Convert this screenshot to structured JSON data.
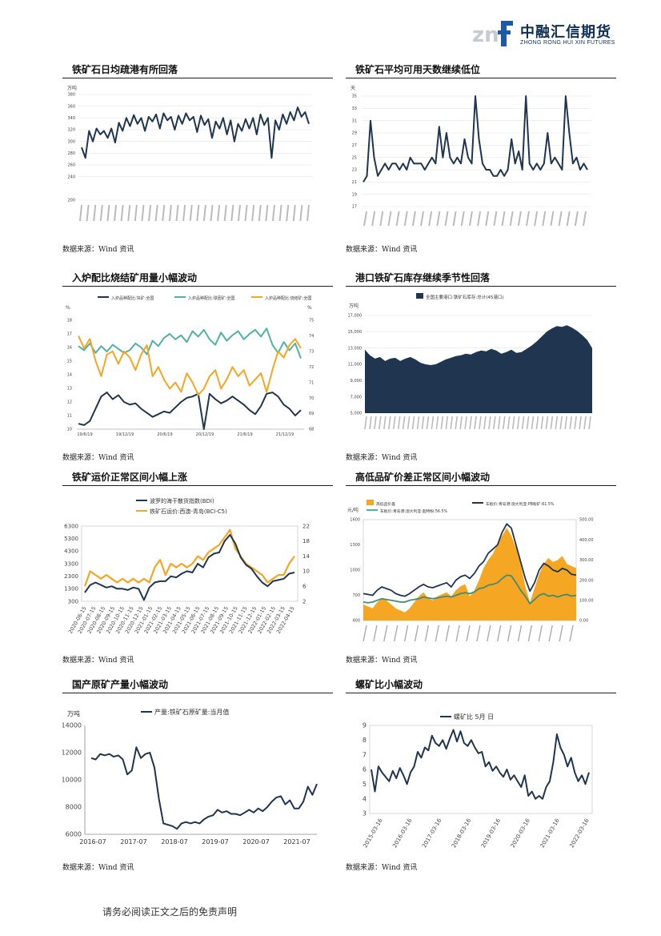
{
  "header": {
    "logo_cn": "中融汇信期货",
    "logo_en": "ZHONG RONG HUI XIN FUTURES",
    "logo_mark": "znf"
  },
  "colors": {
    "navy": "#1f3550",
    "orange": "#f5a623",
    "teal": "#4fb3a4",
    "brand": "#0f2f55"
  },
  "panels": [
    {
      "title": "铁矿石日均疏港有所回落",
      "source": "数据来源：Wind 资讯",
      "chart_data": {
        "type": "line",
        "ylabel": "万吨",
        "yticks": [
          "200",
          "240",
          "260",
          "280",
          "300",
          "320",
          "340",
          "360",
          "380"
        ],
        "ylim": [
          200,
          380
        ],
        "series": [
          {
            "values": [
              290,
              272,
              318,
              300,
              322,
              312,
              318,
              306,
              322,
              298,
              332,
              318,
              340,
              326,
              345,
              330,
              340,
              318,
              342,
              334,
              346,
              322,
              348,
              336,
              342,
              320,
              344,
              330,
              348,
              336,
              342,
              316,
              344,
              328,
              338,
              306,
              334,
              322,
              340,
              312,
              336,
              300,
              330,
              318,
              338,
              322,
              340,
              312,
              346,
              328,
              340,
              272,
              336,
              320,
              346,
              330,
              350,
              336,
              358,
              342,
              350,
              330
            ]
          }
        ]
      }
    },
    {
      "title": "铁矿石平均可用天数继续低位",
      "source": "数据来源：Wind 资讯",
      "chart_data": {
        "type": "line",
        "ylabel": "天",
        "yticks": [
          "17",
          "19",
          "21",
          "23",
          "25",
          "27",
          "29",
          "31",
          "33",
          "35"
        ],
        "ylim": [
          17,
          35
        ],
        "series": [
          {
            "values": [
              21,
              22,
              31,
              25,
              22,
              23,
              24,
              23,
              24,
              24,
              23,
              24,
              23,
              25,
              24,
              24,
              24,
              23,
              24,
              25,
              24,
              30,
              25,
              29,
              25,
              24,
              25,
              24,
              28,
              25,
              24,
              35,
              28,
              24,
              23,
              23,
              22,
              22,
              23,
              22,
              23,
              28,
              24,
              26,
              23,
              35,
              24,
              23,
              24,
              23,
              24,
              29,
              24,
              25,
              24,
              23,
              35,
              29,
              24,
              25,
              23,
              24,
              23
            ]
          }
        ]
      }
    },
    {
      "title": "入炉配比烧结矿用量小幅波动",
      "source": "数据来源：Wind 资讯",
      "chart_data": {
        "type": "line",
        "ylabel_left": "%",
        "ylabel_right": "%",
        "legend": [
          "入炉品种配比:块矿:全国",
          "入炉品种配比:球团矿:全国",
          "入炉品种配比:烧结矿:全国"
        ],
        "yticks_left": [
          "10",
          "11",
          "12",
          "13",
          "14",
          "15",
          "16",
          "17",
          "18"
        ],
        "yticks_right": [
          "68",
          "69",
          "70",
          "71",
          "72",
          "73",
          "74",
          "75"
        ],
        "xticks": [
          "19/6/19",
          "19/12/19",
          "20/6/19",
          "20/12/19",
          "21/6/19",
          "21/12/19"
        ],
        "series": [
          {
            "name": "入炉品种配比:块矿:全国",
            "axis": "left",
            "values": [
              10.4,
              10.3,
              10.6,
              11.5,
              12.4,
              12.7,
              12.2,
              12.5,
              12.0,
              11.8,
              11.9,
              11.5,
              11.2,
              10.9,
              11.1,
              11.3,
              11.2,
              11.6,
              12.0,
              12.3,
              12.4,
              12.6,
              10.0,
              12.6,
              12.2,
              11.9,
              12.1,
              12.4,
              12.1,
              11.8,
              11.4,
              11.1,
              11.7,
              12.6,
              12.7,
              12.4,
              11.8,
              11.5,
              11.0,
              11.4
            ]
          },
          {
            "name": "入炉品种配比:球团矿:全国",
            "axis": "left",
            "values": [
              16.1,
              15.8,
              16.3,
              15.6,
              16.1,
              15.7,
              16.2,
              15.9,
              15.6,
              15.8,
              16.3,
              16.0,
              15.5,
              16.5,
              16.1,
              16.7,
              17.0,
              16.6,
              16.9,
              16.4,
              17.2,
              16.8,
              17.3,
              16.6,
              16.2,
              17.1,
              16.5,
              16.9,
              17.2,
              16.6,
              17.0,
              17.3,
              16.8,
              17.4,
              16.2,
              15.6,
              16.4,
              15.8,
              16.3,
              15.2
            ]
          },
          {
            "name": "入炉品种配比:烧结矿:全国",
            "axis": "right",
            "values": [
              74.0,
              73.2,
              73.8,
              72.4,
              71.4,
              72.8,
              73.0,
              72.2,
              73.0,
              72.6,
              71.8,
              72.8,
              73.4,
              71.4,
              72.0,
              71.2,
              70.6,
              71.0,
              70.4,
              71.6,
              71.0,
              70.2,
              70.6,
              71.4,
              71.8,
              70.6,
              71.2,
              72.0,
              71.4,
              71.8,
              70.8,
              71.2,
              71.6,
              70.4,
              71.8,
              73.0,
              72.6,
              73.4,
              73.8,
              73.2
            ]
          }
        ]
      }
    },
    {
      "title": "港口铁矿石库存继续季节性回落",
      "source": "数据来源：Wind 资讯",
      "chart_data": {
        "type": "area",
        "ylabel": "万吨",
        "legend": [
          "全国主要港口:铁矿石库存:总计(45港口)"
        ],
        "yticks": [
          "5,000",
          "7,000",
          "9,000",
          "11,000",
          "13,000",
          "15,000",
          "17,000"
        ],
        "ylim": [
          5000,
          17000
        ],
        "series": [
          {
            "name": "全国主要港口:铁矿石库存:总计(45港口)",
            "values": [
              12800,
              12100,
              11700,
              11900,
              11400,
              11700,
              11800,
              11400,
              11700,
              11900,
              11600,
              11200,
              11000,
              10900,
              11000,
              11300,
              11600,
              11800,
              12000,
              12100,
              12300,
              12200,
              12500,
              12700,
              12600,
              12900,
              12700,
              12300,
              12500,
              12800,
              12400,
              12500,
              12900,
              13300,
              13800,
              14400,
              15000,
              15400,
              15700,
              15600,
              15800,
              15500,
              15100,
              14600,
              14000,
              13000
            ]
          }
        ]
      }
    },
    {
      "title": "铁矿运价正常区间小幅上涨",
      "source": "数据来源：Wind 资讯",
      "chart_data": {
        "type": "line",
        "legend": [
          "波罗的海干散货指数(BDI)",
          "铁矿石运价:西澳-青岛(BCI-C5)"
        ],
        "yticks_left": [
          "300",
          "1300",
          "2300",
          "3300",
          "4300",
          "5300",
          "6300"
        ],
        "yticks_right": [
          "2",
          "6",
          "10",
          "14",
          "18",
          "22"
        ],
        "xticks": [
          "2020-06-15",
          "2020-07-15",
          "2020-08-15",
          "2020-09-15",
          "2020-10-15",
          "2020-11-15",
          "2020-12-15",
          "2021-01-15",
          "2021-02-15",
          "2021-03-15",
          "2021-04-15",
          "2021-05-15",
          "2021-06-15",
          "2021-07-15",
          "2021-08-15",
          "2021-09-15",
          "2021-10-15",
          "2021-11-15",
          "2021-12-15",
          "2022-01-15",
          "2022-02-15",
          "2022-03-15",
          "2022-04-15"
        ],
        "series": [
          {
            "name": "波罗的海干散货指数(BDI)",
            "axis": "left",
            "values": [
              1000,
              1600,
              1800,
              1600,
              1400,
              1500,
              1300,
              1300,
              1200,
              1400,
              1300,
              400,
              1400,
              1800,
              1900,
              1900,
              2300,
              2200,
              2500,
              2700,
              2600,
              3300,
              3000,
              3800,
              4100,
              4200,
              5100,
              5600,
              4900,
              3800,
              3200,
              2900,
              2300,
              1800,
              1500,
              1900,
              2000,
              2100,
              2500,
              2600
            ]
          },
          {
            "name": "铁矿石运价:西澳-青岛(BCI-C5)",
            "axis": "right",
            "values": [
              6,
              10,
              9,
              8,
              9,
              8,
              7,
              8,
              7,
              8,
              7,
              8,
              7,
              11,
              13,
              9,
              12,
              11,
              12,
              11,
              12,
              14,
              13,
              15,
              16,
              17,
              19,
              21,
              16,
              14,
              12,
              11,
              10,
              9,
              7,
              8,
              9,
              9,
              12,
              14
            ]
          }
        ]
      }
    },
    {
      "title": "高低品矿价差正常区间小幅波动",
      "source": "数据来源：Wind 资讯",
      "chart_data": {
        "type": "area",
        "ylabel_left": "元/吨",
        "legend": [
          "高低品价差",
          "车板价:青岛港:澳大利亚:PB粉矿:61.5%",
          "车板价:青岛港:澳大利亚:超特粉:56.5%"
        ],
        "yticks_left": [
          "400",
          "700",
          "1000",
          "1300",
          "1600"
        ],
        "yticks_right": [
          "0.00",
          "100.00",
          "200.00",
          "300.00",
          "400.00",
          "500.00"
        ],
        "series": [
          {
            "name": "高低品价差",
            "axis": "right",
            "values": [
              80,
              70,
              60,
              90,
              110,
              100,
              80,
              60,
              50,
              40,
              60,
              90,
              120,
              140,
              110,
              100,
              120,
              130,
              140,
              120,
              150,
              170,
              180,
              120,
              150,
              200,
              260,
              300,
              330,
              380,
              420,
              460,
              420,
              360,
              280,
              170,
              90,
              160,
              230,
              280,
              310,
              290,
              300,
              320,
              280,
              270,
              260
            ]
          },
          {
            "name": "车板价:青岛港:澳大利亚:PB粉矿:61.5%",
            "axis": "left",
            "values": [
              720,
              710,
              700,
              760,
              800,
              780,
              760,
              720,
              700,
              690,
              720,
              760,
              800,
              830,
              800,
              790,
              810,
              830,
              850,
              800,
              880,
              920,
              940,
              900,
              960,
              1050,
              1100,
              1200,
              1250,
              1300,
              1450,
              1550,
              1500,
              1300,
              1100,
              900,
              750,
              850,
              1000,
              1080,
              1050,
              1000,
              980,
              1020,
              1000,
              950,
              940
            ]
          },
          {
            "name": "车板价:青岛港:澳大利亚:超特粉:56.5%",
            "axis": "left",
            "values": [
              620,
              610,
              620,
              640,
              660,
              650,
              640,
              630,
              620,
              620,
              640,
              650,
              660,
              680,
              670,
              660,
              670,
              680,
              690,
              680,
              700,
              720,
              730,
              720,
              740,
              780,
              790,
              820,
              830,
              850,
              900,
              940,
              930,
              850,
              760,
              690,
              600,
              650,
              700,
              720,
              690,
              700,
              680,
              700,
              710,
              690,
              700
            ]
          }
        ]
      }
    },
    {
      "title": "国产原矿产量小幅波动",
      "source": "数据来源：Wind 资讯",
      "chart_data": {
        "type": "line",
        "ylabel": "万吨",
        "legend": [
          "产量:铁矿石原矿量:当月值"
        ],
        "yticks": [
          "6000",
          "8000",
          "10000",
          "12000",
          "14000"
        ],
        "ylim": [
          6000,
          14000
        ],
        "xticks": [
          "2016-07",
          "2017-07",
          "2018-07",
          "2019-07",
          "2020-07",
          "2021-07"
        ],
        "series": [
          {
            "name": "产量:铁矿石原矿量:当月值",
            "values": [
              11600,
              11500,
              11900,
              11800,
              11900,
              11700,
              11800,
              11500,
              10400,
              10700,
              12400,
              11600,
              11900,
              12000,
              10900,
              8600,
              6800,
              6700,
              6600,
              6400,
              6800,
              6900,
              6800,
              6900,
              6800,
              7100,
              7300,
              7400,
              7800,
              7600,
              7700,
              7500,
              7500,
              7400,
              7600,
              7800,
              7600,
              7900,
              7700,
              8000,
              8400,
              8700,
              8800,
              8200,
              8500,
              7900,
              7900,
              8400,
              9500,
              8900,
              9700
            ]
          }
        ]
      }
    },
    {
      "title": "螺矿比小幅波动",
      "source": "数据来源：Wind 资讯",
      "chart_data": {
        "type": "line",
        "legend": [
          "螺矿比  5月 日"
        ],
        "yticks": [
          "3",
          "4",
          "5",
          "6",
          "7",
          "8",
          "9"
        ],
        "ylim": [
          3,
          9
        ],
        "xticks": [
          "2015-03-16",
          "2016-03-16",
          "2017-03-16",
          "2018-03-16",
          "2019-03-16",
          "2020-03-16",
          "2021-03-16",
          "2022-03-16"
        ],
        "series": [
          {
            "name": "螺矿比  5月 日",
            "values": [
              6.0,
              4.5,
              6.2,
              5.8,
              5.5,
              5.2,
              5.9,
              5.4,
              6.1,
              5.6,
              5.0,
              5.8,
              6.2,
              7.2,
              6.8,
              7.5,
              7.3,
              8.3,
              7.8,
              7.6,
              8.0,
              7.4,
              8.1,
              8.7,
              7.9,
              8.6,
              7.8,
              7.6,
              8.0,
              7.5,
              7.1,
              7.2,
              6.2,
              6.5,
              5.9,
              6.2,
              5.8,
              5.5,
              6.0,
              5.3,
              5.6,
              5.2,
              4.8,
              5.6,
              4.2,
              4.5,
              4.0,
              4.2,
              4.0,
              4.8,
              5.2,
              6.5,
              8.4,
              7.5,
              7.0,
              6.2,
              6.8,
              5.8,
              5.2,
              5.6,
              5.0,
              5.8
            ]
          }
        ]
      }
    }
  ],
  "footer": {
    "disclaimer": "请务必阅读正文之后的免责声明"
  }
}
